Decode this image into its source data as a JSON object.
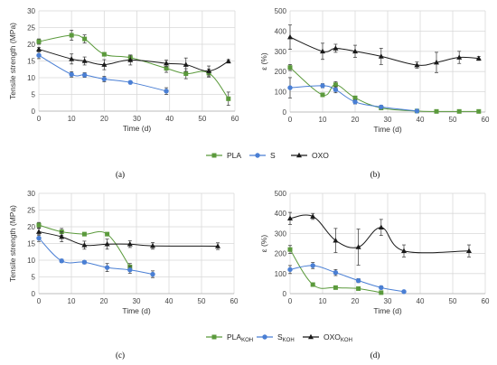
{
  "colors": {
    "PLA": "#5b9a3c",
    "S": "#4a7fd4",
    "OXO": "#1a1a1a",
    "grid": "#d9d9d9"
  },
  "legends": [
    {
      "items": [
        {
          "series": "PLA",
          "text": "PLA",
          "sub": "",
          "marker": "square"
        },
        {
          "series": "S",
          "text": "S",
          "sub": "",
          "marker": "circle"
        },
        {
          "series": "OXO",
          "text": "OXO",
          "sub": "",
          "marker": "triangle"
        }
      ]
    },
    {
      "items": [
        {
          "series": "PLA",
          "text": "PLA",
          "sub": "KOH",
          "marker": "square"
        },
        {
          "series": "S",
          "text": "S",
          "sub": "KOH",
          "marker": "circle"
        },
        {
          "series": "OXO",
          "text": "OXO",
          "sub": "KOH",
          "marker": "triangle"
        }
      ]
    }
  ],
  "chart_data": [
    {
      "panel": "(a)",
      "type": "line",
      "xlabel": "Time (d)",
      "ylabel": "Tensile strength (MPa)",
      "xlim": [
        0,
        60
      ],
      "ylim": [
        0,
        30
      ],
      "xticks": [
        0,
        10,
        20,
        30,
        40,
        50,
        60
      ],
      "yticks": [
        0,
        5,
        10,
        15,
        20,
        25,
        30
      ],
      "grid": true,
      "series": [
        {
          "name": "PLA",
          "x": [
            0,
            10,
            14,
            20,
            28,
            39,
            45,
            52,
            58
          ],
          "y": [
            20.8,
            22.7,
            21.6,
            17,
            16,
            12.8,
            11.2,
            11.4,
            3.7
          ],
          "err": [
            0.8,
            1.5,
            1.2,
            0.5,
            0.8,
            1.2,
            1.5,
            1.2,
            2
          ]
        },
        {
          "name": "S",
          "x": [
            0,
            10,
            14,
            20,
            28,
            39
          ],
          "y": [
            16.7,
            11,
            10.8,
            9.6,
            8.6,
            6
          ],
          "err": [
            1,
            0.8,
            0.7,
            0.8,
            0.3,
            1
          ]
        },
        {
          "name": "OXO",
          "x": [
            0,
            10,
            14,
            20,
            28,
            39,
            45,
            52,
            58
          ],
          "y": [
            18.5,
            15.6,
            15,
            13.9,
            15.3,
            14.3,
            13.9,
            12,
            14.9
          ],
          "err": [
            0.5,
            1.5,
            1.2,
            1.5,
            1.5,
            1,
            2,
            1.5,
            0.5
          ]
        }
      ]
    },
    {
      "panel": "(b)",
      "type": "line",
      "xlabel": "Time (d)",
      "ylabel": "ε (%)",
      "xlim": [
        0,
        60
      ],
      "ylim": [
        0,
        500
      ],
      "xticks": [
        0,
        10,
        20,
        30,
        40,
        50,
        60
      ],
      "yticks": [
        0,
        100,
        200,
        300,
        400,
        500
      ],
      "grid": true,
      "series": [
        {
          "name": "PLA",
          "x": [
            0,
            10,
            14,
            20,
            28,
            39,
            45,
            52,
            58
          ],
          "y": [
            220,
            85,
            135,
            70,
            20,
            5,
            3,
            3,
            3
          ],
          "err": [
            15,
            5,
            15,
            8,
            5,
            2,
            1,
            1,
            1
          ]
        },
        {
          "name": "S",
          "x": [
            0,
            10,
            14,
            20,
            28,
            39
          ],
          "y": [
            120,
            130,
            110,
            50,
            25,
            5
          ],
          "err": [
            50,
            10,
            15,
            10,
            8,
            2
          ]
        },
        {
          "name": "OXO",
          "x": [
            0,
            10,
            14,
            20,
            28,
            39,
            45,
            52,
            58
          ],
          "y": [
            370,
            300,
            315,
            300,
            275,
            232,
            245,
            270,
            265
          ],
          "err": [
            60,
            40,
            20,
            30,
            40,
            15,
            50,
            30,
            10
          ]
        }
      ]
    },
    {
      "panel": "(c)",
      "type": "line",
      "xlabel": "Time (d)",
      "ylabel": "Tensile strength (MPa)",
      "xlim": [
        0,
        60
      ],
      "ylim": [
        0,
        30
      ],
      "xticks": [
        0,
        10,
        20,
        30,
        40,
        50,
        60
      ],
      "yticks": [
        0,
        5,
        10,
        15,
        20,
        25,
        30
      ],
      "grid": true,
      "series": [
        {
          "name": "PLA",
          "x": [
            0,
            7,
            14,
            21,
            28
          ],
          "y": [
            20.5,
            18.5,
            17.8,
            17.8,
            8
          ],
          "err": [
            0.8,
            1,
            0.5,
            0.5,
            1
          ]
        },
        {
          "name": "S",
          "x": [
            0,
            7,
            14,
            21,
            28,
            35
          ],
          "y": [
            16.6,
            9.8,
            9.4,
            7.8,
            7.1,
            5.8
          ],
          "err": [
            1,
            0.5,
            0.5,
            1.2,
            1,
            1
          ]
        },
        {
          "name": "OXO",
          "x": [
            0,
            7,
            14,
            21,
            28,
            35,
            55
          ],
          "y": [
            18.5,
            17,
            14.5,
            14.8,
            14.8,
            14.3,
            14.2
          ],
          "err": [
            1,
            1.5,
            1.2,
            1.5,
            1,
            1,
            1
          ]
        }
      ]
    },
    {
      "panel": "(d)",
      "type": "line",
      "xlabel": "Time (d)",
      "ylabel": "ε (%)",
      "xlim": [
        0,
        60
      ],
      "ylim": [
        0,
        500
      ],
      "xticks": [
        0,
        10,
        20,
        30,
        40,
        50,
        60
      ],
      "yticks": [
        0,
        100,
        200,
        300,
        400,
        500
      ],
      "grid": true,
      "series": [
        {
          "name": "PLA",
          "x": [
            0,
            7,
            14,
            21,
            28
          ],
          "y": [
            220,
            45,
            30,
            25,
            5
          ],
          "err": [
            20,
            5,
            5,
            5,
            2
          ]
        },
        {
          "name": "S",
          "x": [
            0,
            7,
            14,
            21,
            28,
            35
          ],
          "y": [
            120,
            140,
            105,
            65,
            30,
            10
          ],
          "err": [
            20,
            15,
            15,
            10,
            8,
            5
          ]
        },
        {
          "name": "OXO",
          "x": [
            0,
            7,
            14,
            21,
            28,
            35,
            55
          ],
          "y": [
            375,
            385,
            265,
            232,
            330,
            213,
            213
          ],
          "err": [
            30,
            15,
            60,
            90,
            40,
            30,
            30
          ]
        }
      ]
    }
  ]
}
